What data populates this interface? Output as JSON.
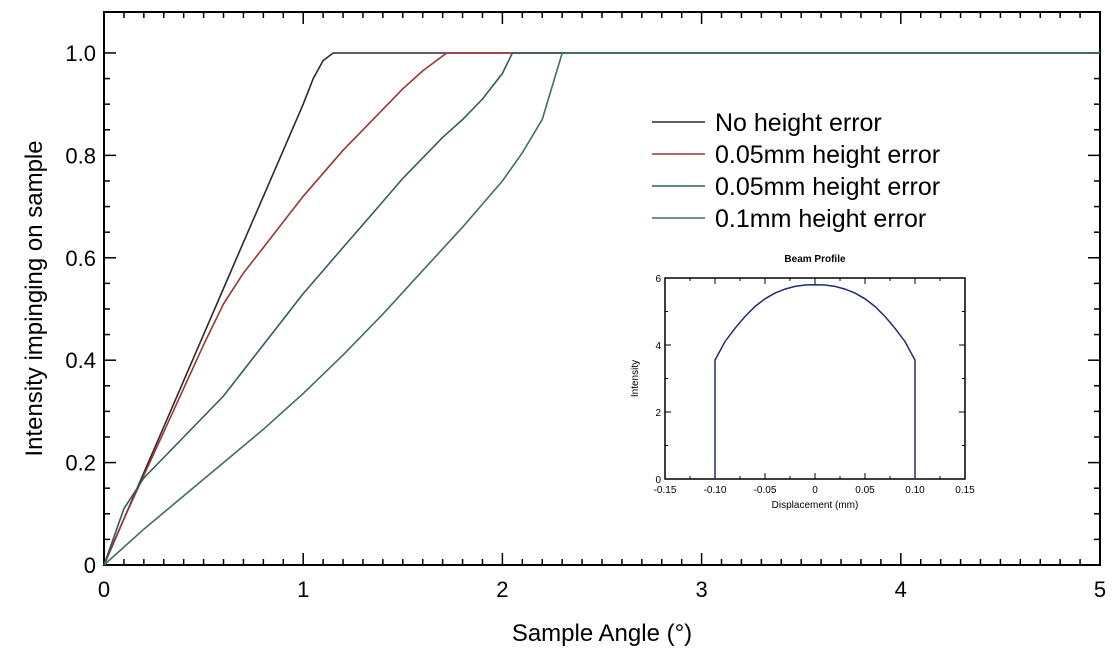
{
  "chart_data": [
    {
      "type": "line",
      "xlabel": "Sample Angle (°)",
      "ylabel": "Intensity impinging on sample",
      "xlim": [
        0,
        5
      ],
      "ylim": [
        0,
        1.08
      ],
      "x_ticks": [
        "0",
        "1",
        "2",
        "3",
        "4",
        "5"
      ],
      "y_ticks": [
        "0",
        "0.2",
        "0.4",
        "0.6",
        "0.8",
        "1.0"
      ],
      "grid": false,
      "legend_position": "top-right",
      "series": [
        {
          "name": "No height error",
          "color": "#2b2b2b",
          "points": [
            [
              0,
              0
            ],
            [
              0.1,
              0.09
            ],
            [
              0.2,
              0.18
            ],
            [
              0.3,
              0.27
            ],
            [
              0.4,
              0.36
            ],
            [
              0.5,
              0.45
            ],
            [
              0.6,
              0.54
            ],
            [
              0.7,
              0.63
            ],
            [
              0.8,
              0.72
            ],
            [
              0.9,
              0.81
            ],
            [
              1.0,
              0.9
            ],
            [
              1.05,
              0.95
            ],
            [
              1.1,
              0.985
            ],
            [
              1.15,
              1.0
            ],
            [
              5,
              1.0
            ]
          ]
        },
        {
          "name": "0.05mm height error",
          "color": "#9a3535",
          "points": [
            [
              0,
              0
            ],
            [
              0.1,
              0.09
            ],
            [
              0.2,
              0.175
            ],
            [
              0.3,
              0.26
            ],
            [
              0.4,
              0.345
            ],
            [
              0.5,
              0.43
            ],
            [
              0.6,
              0.51
            ],
            [
              0.7,
              0.57
            ],
            [
              0.8,
              0.62
            ],
            [
              0.9,
              0.67
            ],
            [
              1.0,
              0.72
            ],
            [
              1.1,
              0.765
            ],
            [
              1.2,
              0.81
            ],
            [
              1.3,
              0.85
            ],
            [
              1.4,
              0.89
            ],
            [
              1.5,
              0.93
            ],
            [
              1.6,
              0.965
            ],
            [
              1.72,
              1.0
            ],
            [
              5,
              1.0
            ]
          ]
        },
        {
          "name": "0.05mm height error",
          "color": "#2e5e62",
          "points": [
            [
              0,
              0
            ],
            [
              0.1,
              0.11
            ],
            [
              0.2,
              0.17
            ],
            [
              0.3,
              0.21
            ],
            [
              0.4,
              0.25
            ],
            [
              0.5,
              0.29
            ],
            [
              0.6,
              0.33
            ],
            [
              0.7,
              0.38
            ],
            [
              0.8,
              0.43
            ],
            [
              0.9,
              0.48
            ],
            [
              1.0,
              0.53
            ],
            [
              1.1,
              0.575
            ],
            [
              1.2,
              0.62
            ],
            [
              1.3,
              0.665
            ],
            [
              1.4,
              0.71
            ],
            [
              1.5,
              0.755
            ],
            [
              1.6,
              0.795
            ],
            [
              1.7,
              0.835
            ],
            [
              1.8,
              0.87
            ],
            [
              1.9,
              0.91
            ],
            [
              2.0,
              0.96
            ],
            [
              2.05,
              1.0
            ],
            [
              5,
              1.0
            ]
          ]
        },
        {
          "name": "0.1mm height error",
          "color": "#3f6f5f",
          "points": [
            [
              0,
              0
            ],
            [
              0.2,
              0.07
            ],
            [
              0.4,
              0.135
            ],
            [
              0.6,
              0.2
            ],
            [
              0.8,
              0.265
            ],
            [
              1.0,
              0.335
            ],
            [
              1.2,
              0.41
            ],
            [
              1.4,
              0.49
            ],
            [
              1.6,
              0.575
            ],
            [
              1.8,
              0.66
            ],
            [
              2.0,
              0.75
            ],
            [
              2.1,
              0.805
            ],
            [
              2.2,
              0.87
            ],
            [
              2.3,
              1.0
            ],
            [
              5,
              1.0
            ]
          ]
        }
      ]
    },
    {
      "type": "line",
      "title": "Beam Profile",
      "xlabel": "Displacement (mm)",
      "ylabel": "Intensity",
      "xlim": [
        -0.15,
        0.15
      ],
      "ylim": [
        0,
        6
      ],
      "x_ticks": [
        "-0.15",
        "-0.10",
        "-0.05",
        "0",
        "0.05",
        "0.10",
        "0.15"
      ],
      "y_ticks": [
        "0",
        "2",
        "4",
        "6"
      ],
      "grid": false,
      "series": [
        {
          "color": "#1e2e6e",
          "points": [
            [
              -0.1,
              0
            ],
            [
              -0.1,
              3.55
            ],
            [
              -0.09,
              4.1
            ],
            [
              -0.08,
              4.5
            ],
            [
              -0.07,
              4.85
            ],
            [
              -0.06,
              5.15
            ],
            [
              -0.05,
              5.38
            ],
            [
              -0.04,
              5.55
            ],
            [
              -0.03,
              5.67
            ],
            [
              -0.02,
              5.75
            ],
            [
              -0.01,
              5.79
            ],
            [
              0,
              5.8
            ],
            [
              0.01,
              5.79
            ],
            [
              0.02,
              5.75
            ],
            [
              0.03,
              5.67
            ],
            [
              0.04,
              5.55
            ],
            [
              0.05,
              5.38
            ],
            [
              0.06,
              5.15
            ],
            [
              0.07,
              4.85
            ],
            [
              0.08,
              4.5
            ],
            [
              0.09,
              4.1
            ],
            [
              0.1,
              3.55
            ],
            [
              0.1,
              0
            ]
          ]
        }
      ]
    }
  ]
}
